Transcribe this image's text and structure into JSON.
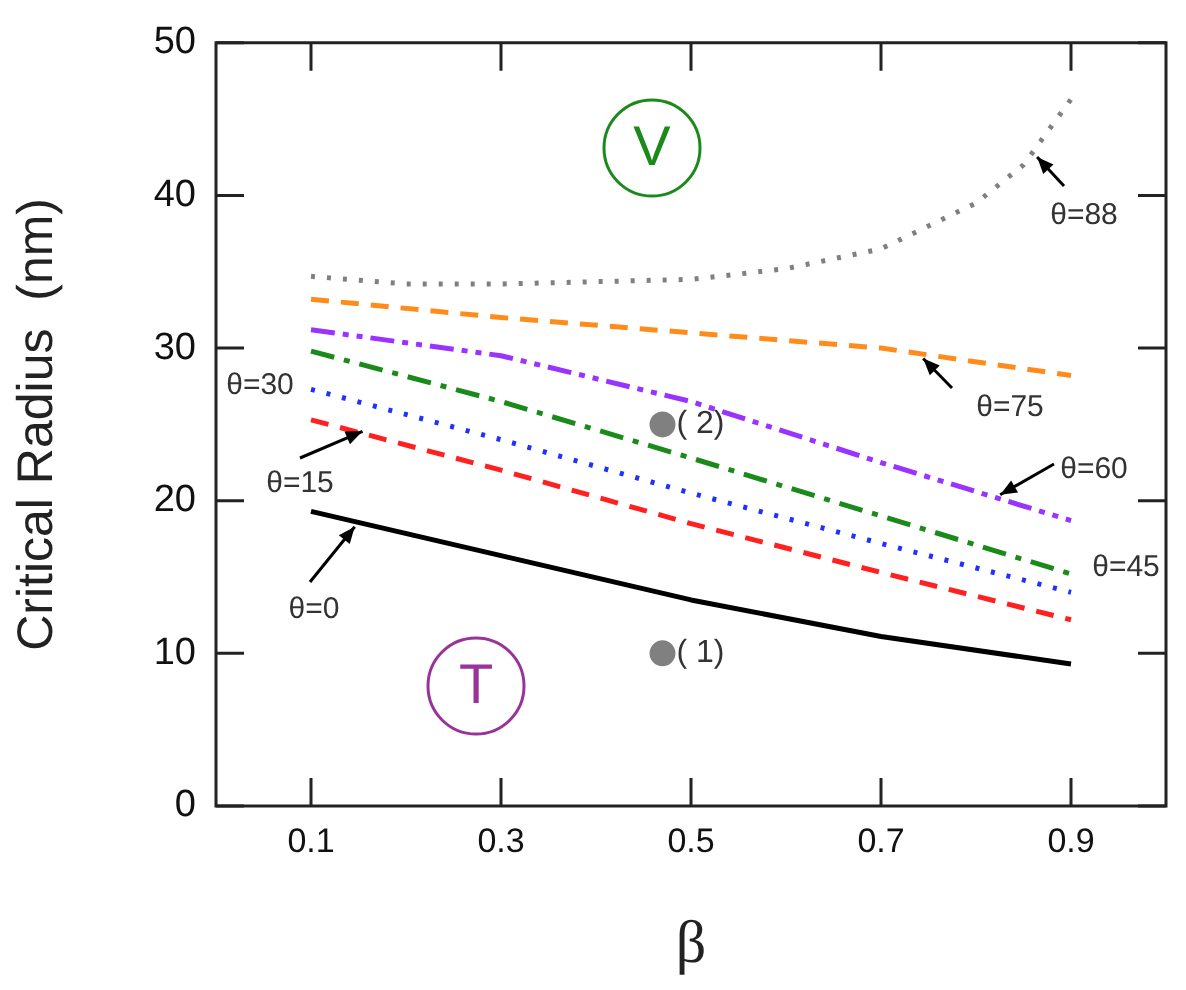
{
  "chart_data": {
    "type": "line",
    "xlabel": "β",
    "ylabel": "Critical Radius  (nm)",
    "xlim": [
      0,
      1
    ],
    "xticks": [
      0.1,
      0.3,
      0.5,
      0.7,
      0.9
    ],
    "ylim": [
      0,
      50
    ],
    "yticks": [
      0,
      10,
      20,
      30,
      40,
      50
    ],
    "grid": false,
    "series": [
      {
        "color": "#000000",
        "line_style": "solid",
        "x": [
          0.1,
          0.3,
          0.5,
          0.7,
          0.9
        ],
        "values": [
          19.3,
          16.4,
          13.5,
          11.1,
          9.3
        ]
      },
      {
        "color": "#ff2020",
        "line_style": "dashed",
        "x": [
          0.1,
          0.3,
          0.5,
          0.7,
          0.9
        ],
        "values": [
          25.3,
          22.0,
          18.5,
          15.3,
          12.2
        ]
      },
      {
        "color": "#2030ff",
        "line_style": "dotted",
        "x": [
          0.1,
          0.3,
          0.5,
          0.7,
          0.9
        ],
        "values": [
          27.3,
          24.0,
          20.5,
          17.2,
          14.0
        ]
      },
      {
        "color": "#1a8a1a",
        "line_style": "dashdot",
        "x": [
          0.1,
          0.3,
          0.5,
          0.7,
          0.9
        ],
        "values": [
          29.8,
          26.5,
          22.8,
          19.0,
          15.2
        ]
      },
      {
        "color": "#9933ff",
        "line_style": "dashdotdot",
        "x": [
          0.1,
          0.3,
          0.5,
          0.7,
          0.9
        ],
        "values": [
          31.2,
          29.5,
          26.5,
          22.5,
          18.7
        ]
      },
      {
        "color": "#ff8c1a",
        "line_style": "dashed",
        "x": [
          0.1,
          0.3,
          0.5,
          0.7,
          0.9
        ],
        "values": [
          33.2,
          32.0,
          31.0,
          30.0,
          28.2
        ]
      },
      {
        "color": "#808080",
        "line_style": "dotted",
        "x": [
          0.1,
          0.2,
          0.3,
          0.5,
          0.6,
          0.7,
          0.8,
          0.85,
          0.9
        ],
        "values": [
          34.7,
          34.2,
          34.2,
          34.5,
          35.2,
          36.5,
          39.5,
          42.0,
          46.3
        ]
      },
      {
        "type": "scatter",
        "color": "#808080",
        "marker": "circle",
        "x": [
          0.47,
          0.47
        ],
        "values": [
          10,
          25
        ]
      }
    ],
    "annotations": [
      "V",
      "T",
      {
        "text": "θ=0",
        "x": 0.15,
        "y": 18.6
      },
      {
        "text": "θ=15",
        "x": 0.16,
        "y": 24.7
      },
      {
        "text": "θ=30",
        "x": 0.1,
        "y": 27.3
      },
      {
        "text": "θ=45",
        "x": 0.9,
        "y": 15.2
      },
      {
        "text": "θ=60",
        "x": 0.82,
        "y": 20.2
      },
      {
        "text": "θ=75",
        "x": 0.74,
        "y": 29.6
      },
      {
        "text": "θ=88",
        "x": 0.86,
        "y": 42.8
      },
      {
        "text": "( 1)",
        "x": 0.47,
        "y": 10
      },
      {
        "text": "( 2)",
        "x": 0.47,
        "y": 25
      }
    ]
  }
}
